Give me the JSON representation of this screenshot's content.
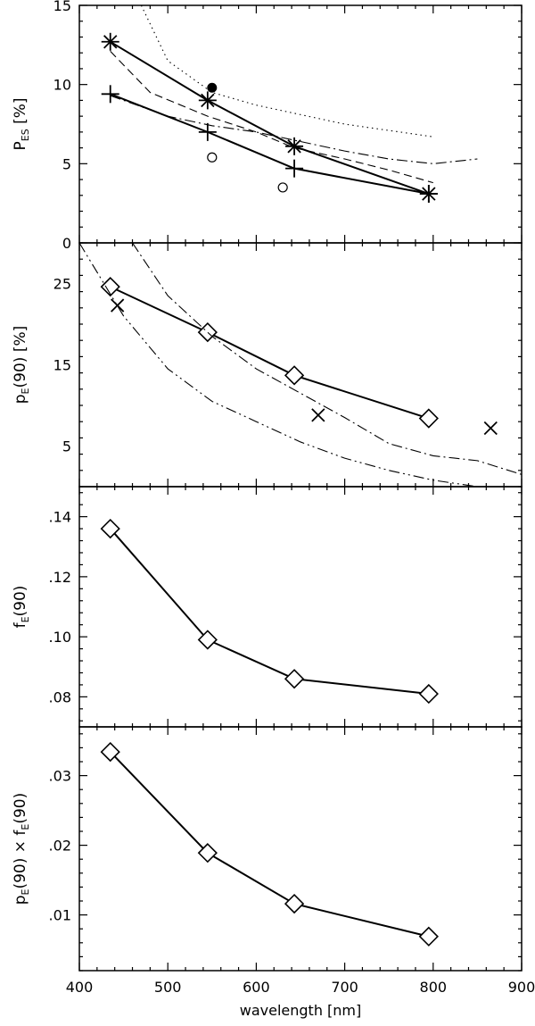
{
  "chart_data": [
    {
      "type": "line",
      "xlabel": "",
      "ylabel": "P_ES [%]",
      "ylabel_parts": {
        "main": "P",
        "sub": "ES",
        "unit": " [%]"
      },
      "xlim": [
        400,
        900
      ],
      "ylim": [
        0,
        15
      ],
      "yticks": [
        0,
        5,
        10,
        15
      ],
      "yticklabels": [
        "0",
        "5",
        "10",
        "15"
      ],
      "series": [
        {
          "marker": "asterisk",
          "style": "solid",
          "x": [
            435,
            545,
            643,
            795
          ],
          "y": [
            12.7,
            9.0,
            6.1,
            3.1
          ]
        },
        {
          "marker": "plus",
          "style": "solid",
          "x": [
            435,
            545,
            643,
            795
          ],
          "y": [
            9.4,
            7.0,
            4.7,
            3.1
          ]
        },
        {
          "marker": "filled-circle",
          "style": "none",
          "x": [
            550
          ],
          "y": [
            9.8
          ]
        },
        {
          "marker": "open-circle",
          "style": "none",
          "x": [
            550,
            630
          ],
          "y": [
            5.4,
            3.5
          ]
        },
        {
          "marker": "none",
          "style": "dotted",
          "x": [
            470,
            500,
            550,
            600,
            650,
            700,
            750,
            800
          ],
          "y": [
            15,
            11.5,
            9.5,
            8.7,
            8.1,
            7.5,
            7.1,
            6.7
          ]
        },
        {
          "marker": "none",
          "style": "dashed",
          "x": [
            435,
            480,
            545,
            600,
            643,
            700,
            750,
            800
          ],
          "y": [
            12.1,
            9.5,
            8.0,
            7.0,
            6.0,
            5.3,
            4.6,
            3.8
          ]
        },
        {
          "marker": "none",
          "style": "dashdot",
          "x": [
            435,
            500,
            550,
            600,
            650,
            700,
            750,
            800,
            850
          ],
          "y": [
            9.3,
            8.0,
            7.4,
            7.0,
            6.4,
            5.8,
            5.3,
            5.0,
            5.3
          ]
        }
      ]
    },
    {
      "type": "line",
      "xlabel": "",
      "ylabel": "p_E(90) [%]",
      "ylabel_parts": {
        "main": "p",
        "sub": "E",
        "unit": "(90) [%]"
      },
      "xlim": [
        400,
        900
      ],
      "ylim": [
        0,
        30
      ],
      "yticks": [
        5,
        15,
        25
      ],
      "yticklabels": [
        "5",
        "15",
        "25"
      ],
      "series": [
        {
          "marker": "diamond",
          "style": "solid",
          "x": [
            435,
            545,
            643,
            795
          ],
          "y": [
            24.6,
            19.0,
            13.7,
            8.4
          ]
        },
        {
          "marker": "cross",
          "style": "none",
          "x": [
            443,
            670,
            865
          ],
          "y": [
            22.3,
            8.8,
            7.2
          ]
        },
        {
          "marker": "none",
          "style": "dashdot",
          "x": [
            460,
            500,
            550,
            600,
            650,
            700,
            750,
            800,
            850,
            900
          ],
          "y": [
            30,
            23.5,
            18.5,
            14.5,
            11.5,
            8.5,
            5.3,
            3.8,
            3.2,
            1.5
          ]
        },
        {
          "marker": "none",
          "style": "dashdotdot",
          "x": [
            400,
            450,
            500,
            550,
            600,
            650,
            700,
            750,
            800,
            850
          ],
          "y": [
            30,
            21.0,
            14.5,
            10.5,
            8.0,
            5.5,
            3.5,
            2.0,
            0.8,
            0.0
          ]
        }
      ]
    },
    {
      "type": "line",
      "xlabel": "",
      "ylabel": "f_E(90)",
      "ylabel_parts": {
        "main": "f",
        "sub": "E",
        "unit": "(90)"
      },
      "xlim": [
        400,
        900
      ],
      "ylim": [
        0.07,
        0.15
      ],
      "yticks": [
        0.08,
        0.1,
        0.12,
        0.14
      ],
      "yticklabels": [
        ".08",
        ".10",
        ".12",
        ".14"
      ],
      "series": [
        {
          "marker": "diamond",
          "style": "solid",
          "x": [
            435,
            545,
            643,
            795
          ],
          "y": [
            0.136,
            0.099,
            0.086,
            0.081
          ]
        }
      ]
    },
    {
      "type": "line",
      "xlabel": "wavelength [nm]",
      "ylabel": "p_E(90) × f_E(90)",
      "ylabel_parts": {
        "main": "p",
        "sub": "E",
        "unit": "(90) × f",
        "sub2": "E",
        "unit2": "(90)"
      },
      "xlim": [
        400,
        900
      ],
      "ylim": [
        0.002,
        0.037
      ],
      "yticks": [
        0.01,
        0.02,
        0.03
      ],
      "yticklabels": [
        ".01",
        ".02",
        ".03"
      ],
      "xticks": [
        400,
        500,
        600,
        700,
        800,
        900
      ],
      "xticklabels": [
        "400",
        "500",
        "600",
        "700",
        "800",
        "900"
      ],
      "series": [
        {
          "marker": "diamond",
          "style": "solid",
          "x": [
            435,
            545,
            643,
            795
          ],
          "y": [
            0.0334,
            0.0189,
            0.0116,
            0.0069
          ]
        }
      ]
    }
  ]
}
